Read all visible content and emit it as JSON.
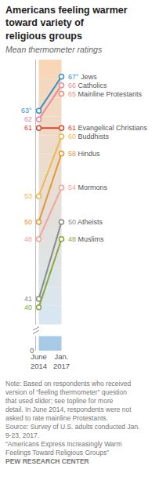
{
  "chart_data": {
    "type": "line",
    "title": "Americans feeling warmer toward variety of religious groups",
    "subtitle": "Mean thermometer ratings",
    "categories": [
      "June 2014",
      "Jan. 2017"
    ],
    "series": [
      {
        "name": "Jews",
        "color": "#3a8fc7",
        "values": [
          63,
          67
        ],
        "value_labels": [
          "63°",
          "67°"
        ]
      },
      {
        "name": "Catholics",
        "color": "#e98aa5",
        "values": [
          62,
          66
        ]
      },
      {
        "name": "Mainline Protestants",
        "color": "#ef8f7a",
        "values": [
          null,
          65
        ]
      },
      {
        "name": "Evangelical Christians",
        "color": "#d6462b",
        "values": [
          61,
          61
        ]
      },
      {
        "name": "Buddhists",
        "color": "#f3b64c",
        "values": [
          53,
          60
        ]
      },
      {
        "name": "Hindus",
        "color": "#e8962f",
        "values": [
          50,
          58
        ]
      },
      {
        "name": "Mormons",
        "color": "#f3a29c",
        "values": [
          48,
          54
        ]
      },
      {
        "name": "Atheists",
        "color": "#8a8a8a",
        "values": [
          41,
          50
        ]
      },
      {
        "name": "Muslims",
        "color": "#8aa63c",
        "values": [
          40,
          48
        ]
      }
    ],
    "ylim": [
      38,
      69
    ],
    "yticks": [],
    "y2lim": [
      0,
      2
    ],
    "y2ticks": [
      0
    ],
    "grid": false,
    "data_labels": true,
    "marker": "circle",
    "line_style": "solid",
    "annotations": [
      "Note: Based on respondents who received version of “feeling thermometer” question that used slider; see topline for more detail. In June 2014, respondents were not asked to rate mainline Protestants.",
      "Source: Survey of U.S. adults conducted Jan. 9-23, 2017.",
      "“Americans Express Increasingly Warm Feelings Toward Religious Groups”",
      "PEW RESEARCH CENTER"
    ]
  }
}
